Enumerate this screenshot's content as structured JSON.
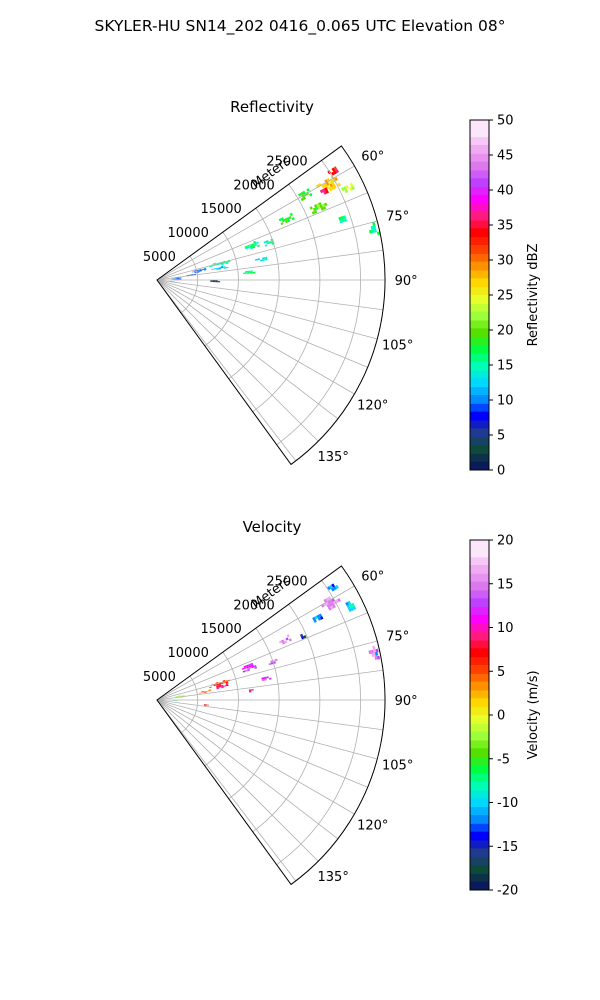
{
  "figure": {
    "title": "SKYLER-HU  SN14_202  0416_0.065 UTC Elevation 08°"
  },
  "chart_data": [
    {
      "type": "heatmap",
      "panel_type": "polar-sector (PPI)",
      "title": "Reflectivity",
      "radial_label": "Meters",
      "radial_ticks": [
        "5000",
        "10000",
        "15000",
        "20000",
        "25000"
      ],
      "radial_values": [
        5000,
        10000,
        15000,
        20000,
        25000
      ],
      "range_max": 28000,
      "azimuth_ticks": [
        "60°",
        "75°",
        "90°",
        "105°",
        "120°",
        "135°"
      ],
      "azimuth_values": [
        60,
        75,
        90,
        105,
        120,
        135
      ],
      "azimuth_range": [
        54,
        144
      ],
      "grid": true,
      "colorbar": {
        "label": "Reflectivity dBZ",
        "min": 0,
        "max": 50,
        "ticks": [
          "0",
          "5",
          "10",
          "15",
          "20",
          "25",
          "30",
          "35",
          "40",
          "45",
          "50"
        ],
        "tick_values": [
          0,
          5,
          10,
          15,
          20,
          25,
          30,
          35,
          40,
          45,
          50
        ],
        "colors": [
          "#0a1a5a",
          "#0d4a3a",
          "#1f3a8f",
          "#0000ff",
          "#008cff",
          "#00d8ff",
          "#00ffb4",
          "#00ff40",
          "#54e000",
          "#9cff3a",
          "#e6ff2a",
          "#ffd700",
          "#ff9000",
          "#ff4000",
          "#ff0000",
          "#ff1a80",
          "#ff00ff",
          "#c040ff",
          "#dd77ee",
          "#f0aaf2",
          "#fbe6fb"
        ]
      },
      "echoes": [
        {
          "az": 61,
          "r": 24000,
          "daz": 3.5,
          "dr": 2600,
          "value": 28
        },
        {
          "az": 58.5,
          "r": 25500,
          "daz": 2,
          "dr": 1400,
          "value": 34
        },
        {
          "az": 62,
          "r": 23300,
          "daz": 1.5,
          "dr": 1000,
          "value": 36
        },
        {
          "az": 64.5,
          "r": 26000,
          "daz": 2,
          "dr": 1500,
          "value": 24
        },
        {
          "az": 66,
          "r": 22000,
          "daz": 3,
          "dr": 2500,
          "value": 20
        },
        {
          "az": 60,
          "r": 21000,
          "daz": 2.5,
          "dr": 1500,
          "value": 19
        },
        {
          "az": 65,
          "r": 17600,
          "daz": 3,
          "dr": 1800,
          "value": 19
        },
        {
          "az": 70,
          "r": 12400,
          "daz": 3.5,
          "dr": 1800,
          "value": 17
        },
        {
          "az": 71.5,
          "r": 14500,
          "daz": 2.5,
          "dr": 1200,
          "value": 16
        },
        {
          "az": 75.5,
          "r": 8000,
          "daz": 4,
          "dr": 2800,
          "value": 16
        },
        {
          "az": 79,
          "r": 7800,
          "daz": 2.5,
          "dr": 2000,
          "value": 13
        },
        {
          "az": 78,
          "r": 5300,
          "daz": 4,
          "dr": 1800,
          "value": 10
        },
        {
          "az": 82,
          "r": 4300,
          "daz": 2,
          "dr": 1300,
          "value": 7
        },
        {
          "az": 85,
          "r": 11200,
          "daz": 1.5,
          "dr": 1800,
          "value": 16
        },
        {
          "az": 79,
          "r": 13000,
          "daz": 2,
          "dr": 1400,
          "value": 14
        },
        {
          "az": 77,
          "r": 27300,
          "daz": 4,
          "dr": 1100,
          "value": 17
        },
        {
          "az": 72,
          "r": 24000,
          "daz": 2,
          "dr": 900,
          "value": 16
        },
        {
          "az": 86,
          "r": 2400,
          "daz": 7,
          "dr": 1200,
          "value": 11
        },
        {
          "az": 96,
          "r": 1900,
          "daz": 4,
          "dr": 600,
          "value": 9
        },
        {
          "az": 91,
          "r": 7000,
          "daz": 1.5,
          "dr": 1500,
          "value": 3
        }
      ]
    },
    {
      "type": "heatmap",
      "panel_type": "polar-sector (PPI)",
      "title": "Velocity",
      "radial_label": "Meters",
      "radial_ticks": [
        "5000",
        "10000",
        "15000",
        "20000",
        "25000"
      ],
      "radial_values": [
        5000,
        10000,
        15000,
        20000,
        25000
      ],
      "range_max": 28000,
      "azimuth_ticks": [
        "60°",
        "75°",
        "90°",
        "105°",
        "120°",
        "135°"
      ],
      "azimuth_values": [
        60,
        75,
        90,
        105,
        120,
        135
      ],
      "azimuth_range": [
        54,
        144
      ],
      "grid": true,
      "colorbar": {
        "label": "Velocity (m/s)",
        "min": -20,
        "max": 20,
        "ticks": [
          "-20",
          "-15",
          "-10",
          "-5",
          "0",
          "5",
          "10",
          "15",
          "20"
        ],
        "tick_values": [
          -20,
          -15,
          -10,
          -5,
          0,
          5,
          10,
          15,
          20
        ],
        "colors": [
          "#0a1a5a",
          "#0d4a3a",
          "#1f3a8f",
          "#0000ff",
          "#008cff",
          "#00d8ff",
          "#00ffb4",
          "#00ff40",
          "#54e000",
          "#9cff3a",
          "#e6ff2a",
          "#ffd700",
          "#ff9000",
          "#ff4000",
          "#ff0000",
          "#ff1a80",
          "#ff00ff",
          "#c040ff",
          "#dd77ee",
          "#f0aaf2",
          "#fbe6fb"
        ]
      },
      "echoes": [
        {
          "az": 61,
          "r": 24500,
          "daz": 4,
          "dr": 2500,
          "value": 16
        },
        {
          "az": 57.5,
          "r": 25500,
          "daz": 2,
          "dr": 1500,
          "value": -11
        },
        {
          "az": 62.5,
          "r": 22000,
          "daz": 2.5,
          "dr": 1500,
          "value": -12
        },
        {
          "az": 64,
          "r": 26300,
          "daz": 2.5,
          "dr": 1200,
          "value": -9
        },
        {
          "az": 66.5,
          "r": 19500,
          "daz": 2,
          "dr": 1000,
          "value": -15
        },
        {
          "az": 65,
          "r": 17500,
          "daz": 3,
          "dr": 1800,
          "value": 16
        },
        {
          "az": 70.5,
          "r": 12000,
          "daz": 3.5,
          "dr": 1800,
          "value": 13
        },
        {
          "az": 72,
          "r": 15000,
          "daz": 2,
          "dr": 1200,
          "value": 15
        },
        {
          "az": 75.5,
          "r": 8000,
          "daz": 4,
          "dr": 2800,
          "value": 6
        },
        {
          "az": 78.5,
          "r": 8000,
          "daz": 3,
          "dr": 1700,
          "value": 9
        },
        {
          "az": 80,
          "r": 6000,
          "daz": 2.5,
          "dr": 1500,
          "value": 4
        },
        {
          "az": 84.5,
          "r": 11500,
          "daz": 2,
          "dr": 1500,
          "value": 11
        },
        {
          "az": 79,
          "r": 13500,
          "daz": 2,
          "dr": 1400,
          "value": 13
        },
        {
          "az": 78,
          "r": 27200,
          "daz": 4,
          "dr": 1100,
          "value": 15
        },
        {
          "az": 77.5,
          "r": 27400,
          "daz": 1.5,
          "dr": 600,
          "value": -11
        },
        {
          "az": 82,
          "r": 3000,
          "daz": 6,
          "dr": 1400,
          "value": -2
        },
        {
          "az": 92,
          "r": 2300,
          "daz": 3,
          "dr": 700,
          "value": -5
        },
        {
          "az": 96,
          "r": 6000,
          "daz": 1.5,
          "dr": 1000,
          "value": 7
        }
      ]
    }
  ]
}
